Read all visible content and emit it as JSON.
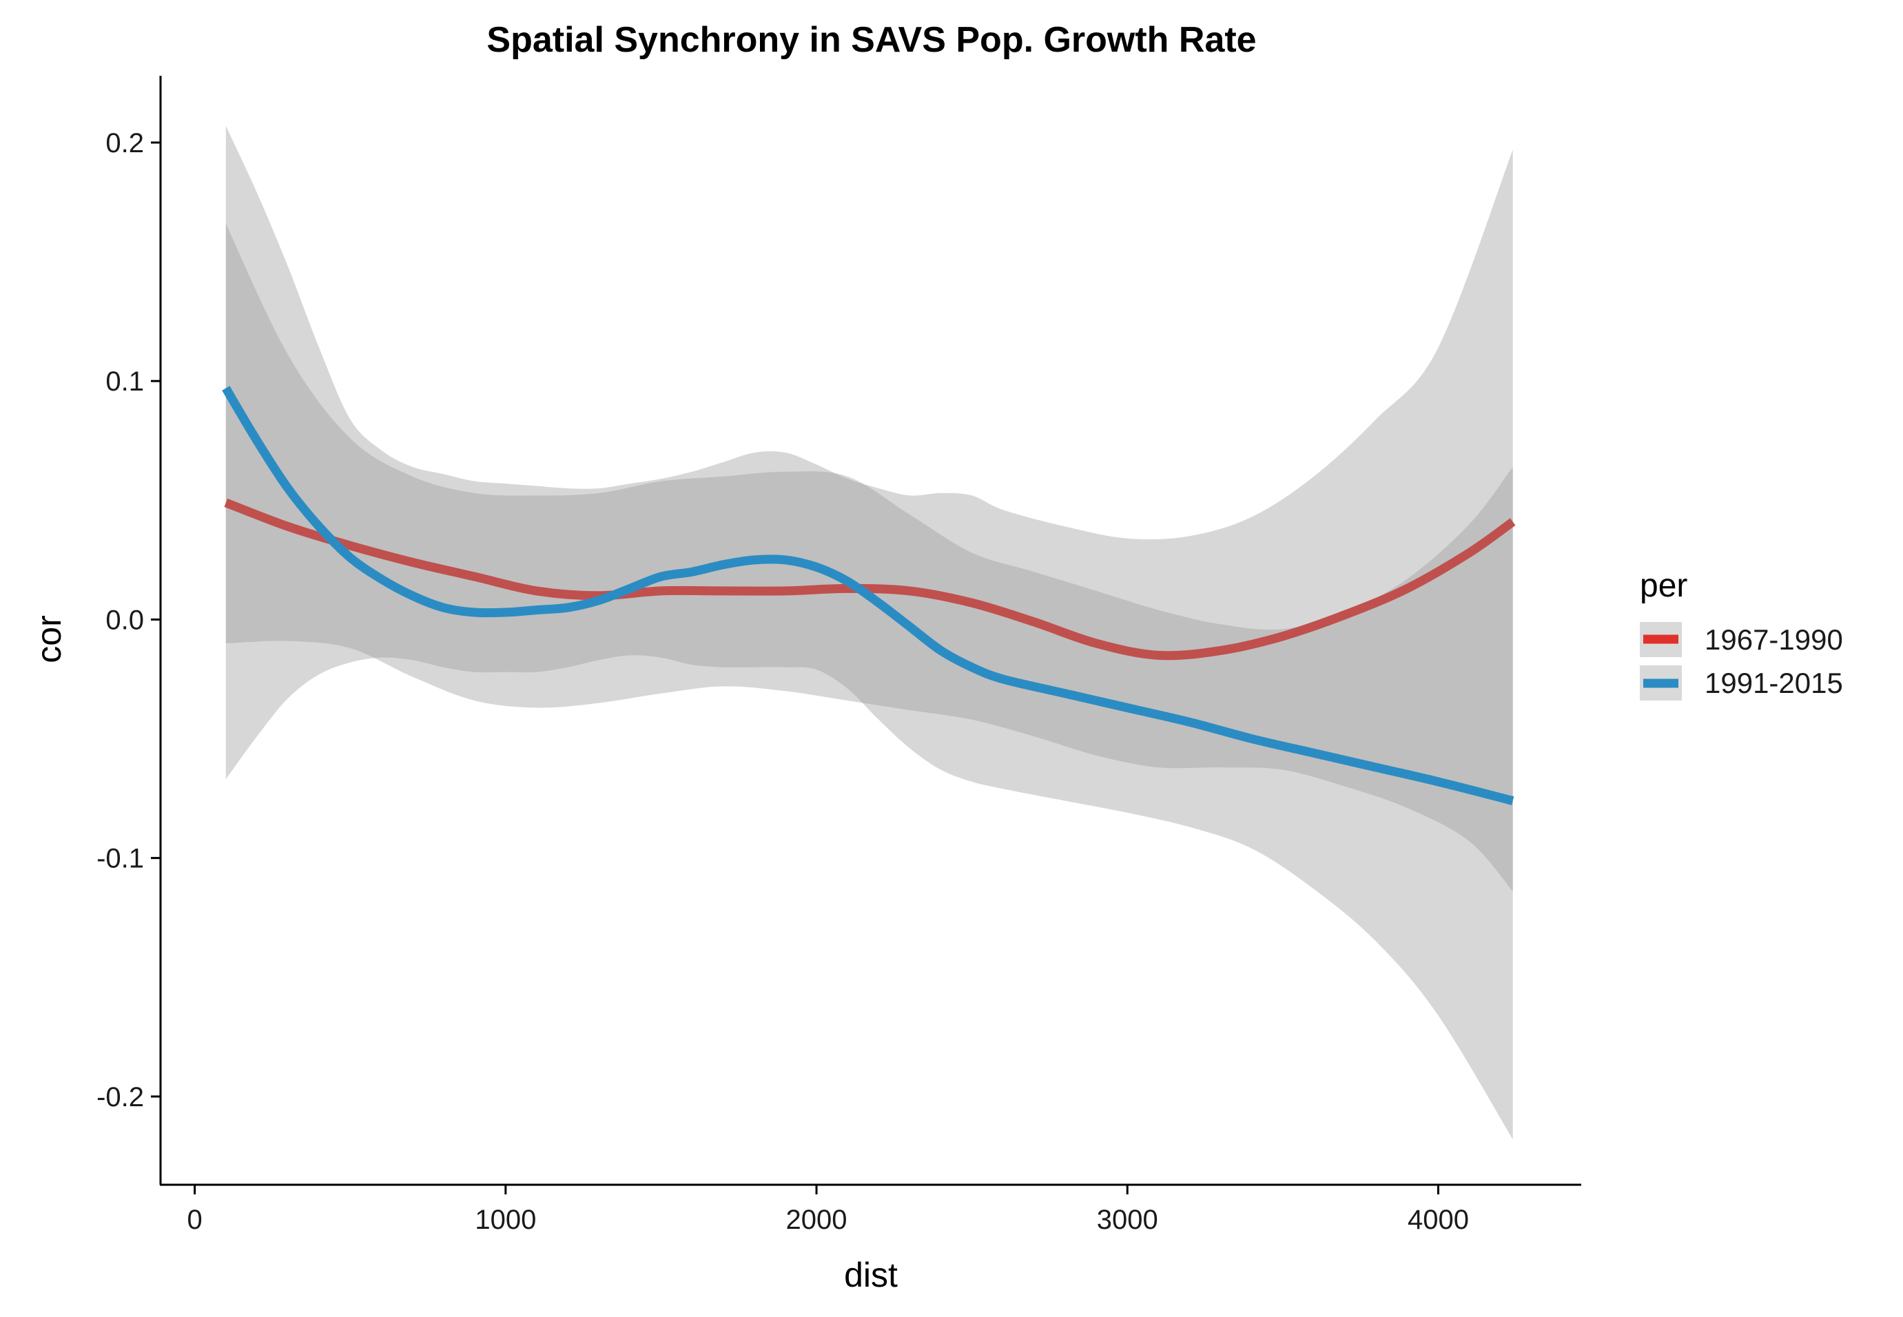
{
  "chart_data": {
    "type": "line",
    "title": "Spatial Synchrony in SAVS Pop. Growth Rate",
    "xlabel": "dist",
    "ylabel": "cor",
    "xlim": [
      -110,
      4460
    ],
    "ylim": [
      -0.237,
      0.228
    ],
    "x_ticks": [
      0,
      1000,
      2000,
      3000,
      4000
    ],
    "x_tick_labels": [
      "0",
      "1000",
      "2000",
      "3000",
      "4000"
    ],
    "y_ticks": [
      -0.2,
      -0.1,
      0.0,
      0.1,
      0.2
    ],
    "y_tick_labels": [
      "-0.2",
      "-0.1",
      "0.0",
      "0.1",
      "0.2"
    ],
    "grid": false,
    "legend": {
      "title": "per",
      "position": "right",
      "entries": [
        "1967-1990",
        "1991-2015"
      ]
    },
    "colors": {
      "legend_1967_1990": "#e0302a",
      "legend_1991_2015": "#2b8cc4",
      "line_1967_1990": "#c0504d",
      "line_1991_2015": "#2b8cc4",
      "ribbon": "#bdbdbd",
      "legend_key_bg": "#d9d9d9"
    },
    "series": [
      {
        "name": "1967-1990",
        "x": [
          100,
          300,
          500,
          700,
          900,
          1100,
          1300,
          1500,
          1700,
          1900,
          2100,
          2300,
          2500,
          2700,
          2900,
          3100,
          3300,
          3500,
          3700,
          3900,
          4100,
          4240
        ],
        "y": [
          0.049,
          0.039,
          0.031,
          0.024,
          0.018,
          0.012,
          0.01,
          0.012,
          0.012,
          0.012,
          0.013,
          0.012,
          0.007,
          -0.001,
          -0.01,
          -0.015,
          -0.013,
          -0.007,
          0.002,
          0.013,
          0.028,
          0.041
        ],
        "lower": [
          -0.01,
          -0.009,
          -0.012,
          -0.024,
          -0.034,
          -0.037,
          -0.035,
          -0.031,
          -0.028,
          -0.03,
          -0.034,
          -0.038,
          -0.042,
          -0.049,
          -0.057,
          -0.062,
          -0.062,
          -0.063,
          -0.07,
          -0.079,
          -0.093,
          -0.114
        ],
        "upper": [
          0.166,
          0.111,
          0.076,
          0.06,
          0.053,
          0.052,
          0.053,
          0.058,
          0.06,
          0.062,
          0.06,
          0.044,
          0.028,
          0.02,
          0.012,
          0.004,
          -0.002,
          -0.004,
          0.003,
          0.017,
          0.04,
          0.064
        ]
      },
      {
        "name": "1991-2015",
        "x": [
          100,
          200,
          300,
          400,
          500,
          600,
          700,
          800,
          900,
          1000,
          1100,
          1200,
          1300,
          1400,
          1500,
          1600,
          1700,
          1800,
          1900,
          2000,
          2100,
          2200,
          2300,
          2400,
          2500,
          2600,
          2800,
          3000,
          3200,
          3400,
          3600,
          3800,
          4000,
          4240
        ],
        "y": [
          0.097,
          0.075,
          0.055,
          0.039,
          0.026,
          0.017,
          0.01,
          0.005,
          0.003,
          0.003,
          0.004,
          0.005,
          0.008,
          0.013,
          0.018,
          0.02,
          0.023,
          0.025,
          0.025,
          0.022,
          0.016,
          0.007,
          -0.003,
          -0.013,
          -0.02,
          -0.025,
          -0.031,
          -0.037,
          -0.043,
          -0.05,
          -0.056,
          -0.062,
          -0.068,
          -0.076
        ],
        "lower": [
          -0.067,
          -0.049,
          -0.033,
          -0.023,
          -0.018,
          -0.016,
          -0.017,
          -0.02,
          -0.022,
          -0.022,
          -0.022,
          -0.02,
          -0.017,
          -0.015,
          -0.016,
          -0.019,
          -0.02,
          -0.02,
          -0.02,
          -0.021,
          -0.029,
          -0.042,
          -0.054,
          -0.063,
          -0.068,
          -0.071,
          -0.076,
          -0.081,
          -0.087,
          -0.096,
          -0.113,
          -0.135,
          -0.166,
          -0.218
        ],
        "upper": [
          0.207,
          0.179,
          0.148,
          0.114,
          0.084,
          0.071,
          0.064,
          0.061,
          0.058,
          0.057,
          0.056,
          0.055,
          0.055,
          0.057,
          0.059,
          0.062,
          0.066,
          0.07,
          0.07,
          0.065,
          0.059,
          0.055,
          0.052,
          0.053,
          0.052,
          0.046,
          0.039,
          0.034,
          0.035,
          0.043,
          0.06,
          0.084,
          0.114,
          0.197
        ]
      }
    ]
  }
}
